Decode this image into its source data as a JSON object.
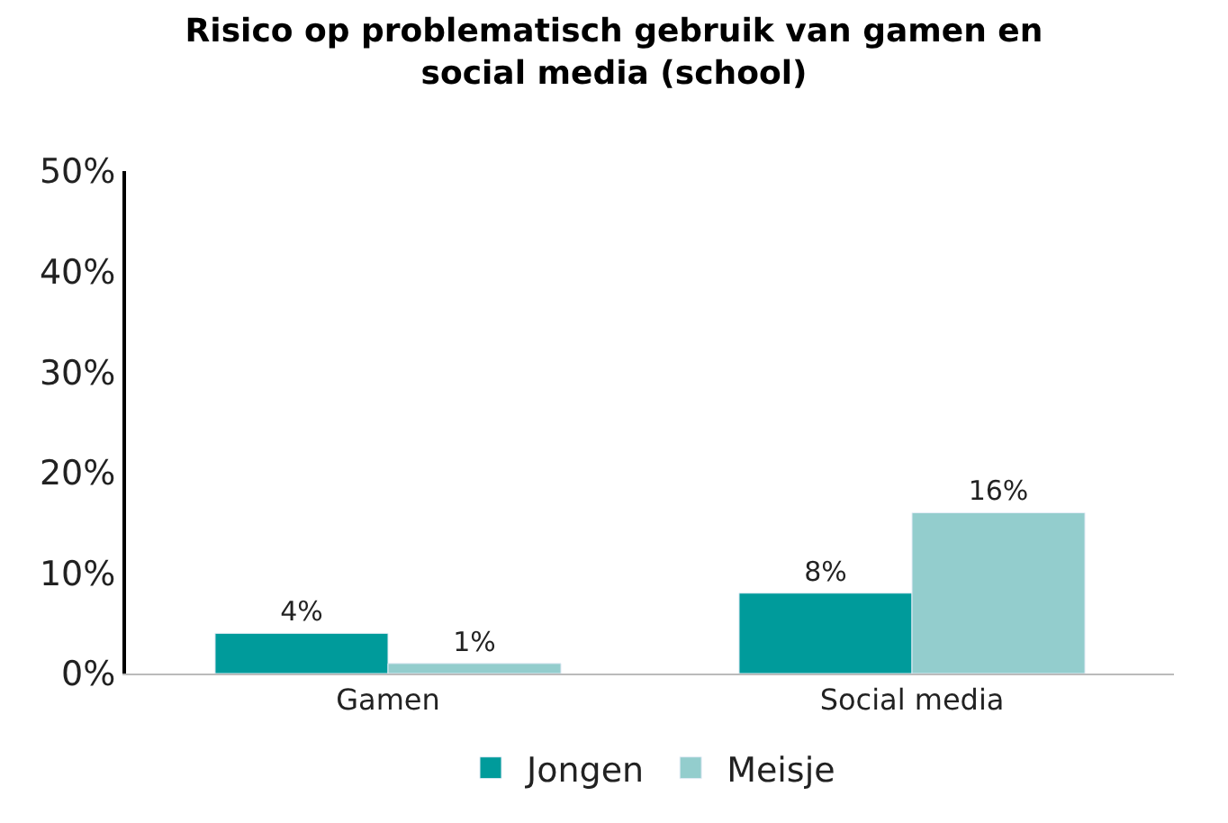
{
  "chart_data": {
    "type": "bar",
    "title": "Risico op problematisch gebruik van gamen en social media (school)",
    "categories": [
      "Gamen",
      "Social media"
    ],
    "series": [
      {
        "name": "Jongen",
        "color": "#009b9b",
        "values": [
          4,
          8
        ],
        "value_labels": [
          "4%",
          "8%"
        ]
      },
      {
        "name": "Meisje",
        "color": "#93cdcd",
        "values": [
          1,
          16
        ],
        "value_labels": [
          "1%",
          "16%"
        ]
      }
    ],
    "ylim": [
      0,
      50
    ],
    "yticks": [
      {
        "value": 0,
        "label": "0%"
      },
      {
        "value": 10,
        "label": "10%"
      },
      {
        "value": 20,
        "label": "20%"
      },
      {
        "value": 30,
        "label": "30%"
      },
      {
        "value": 40,
        "label": "40%"
      },
      {
        "value": 50,
        "label": "50%"
      }
    ],
    "legend": "bottom"
  }
}
